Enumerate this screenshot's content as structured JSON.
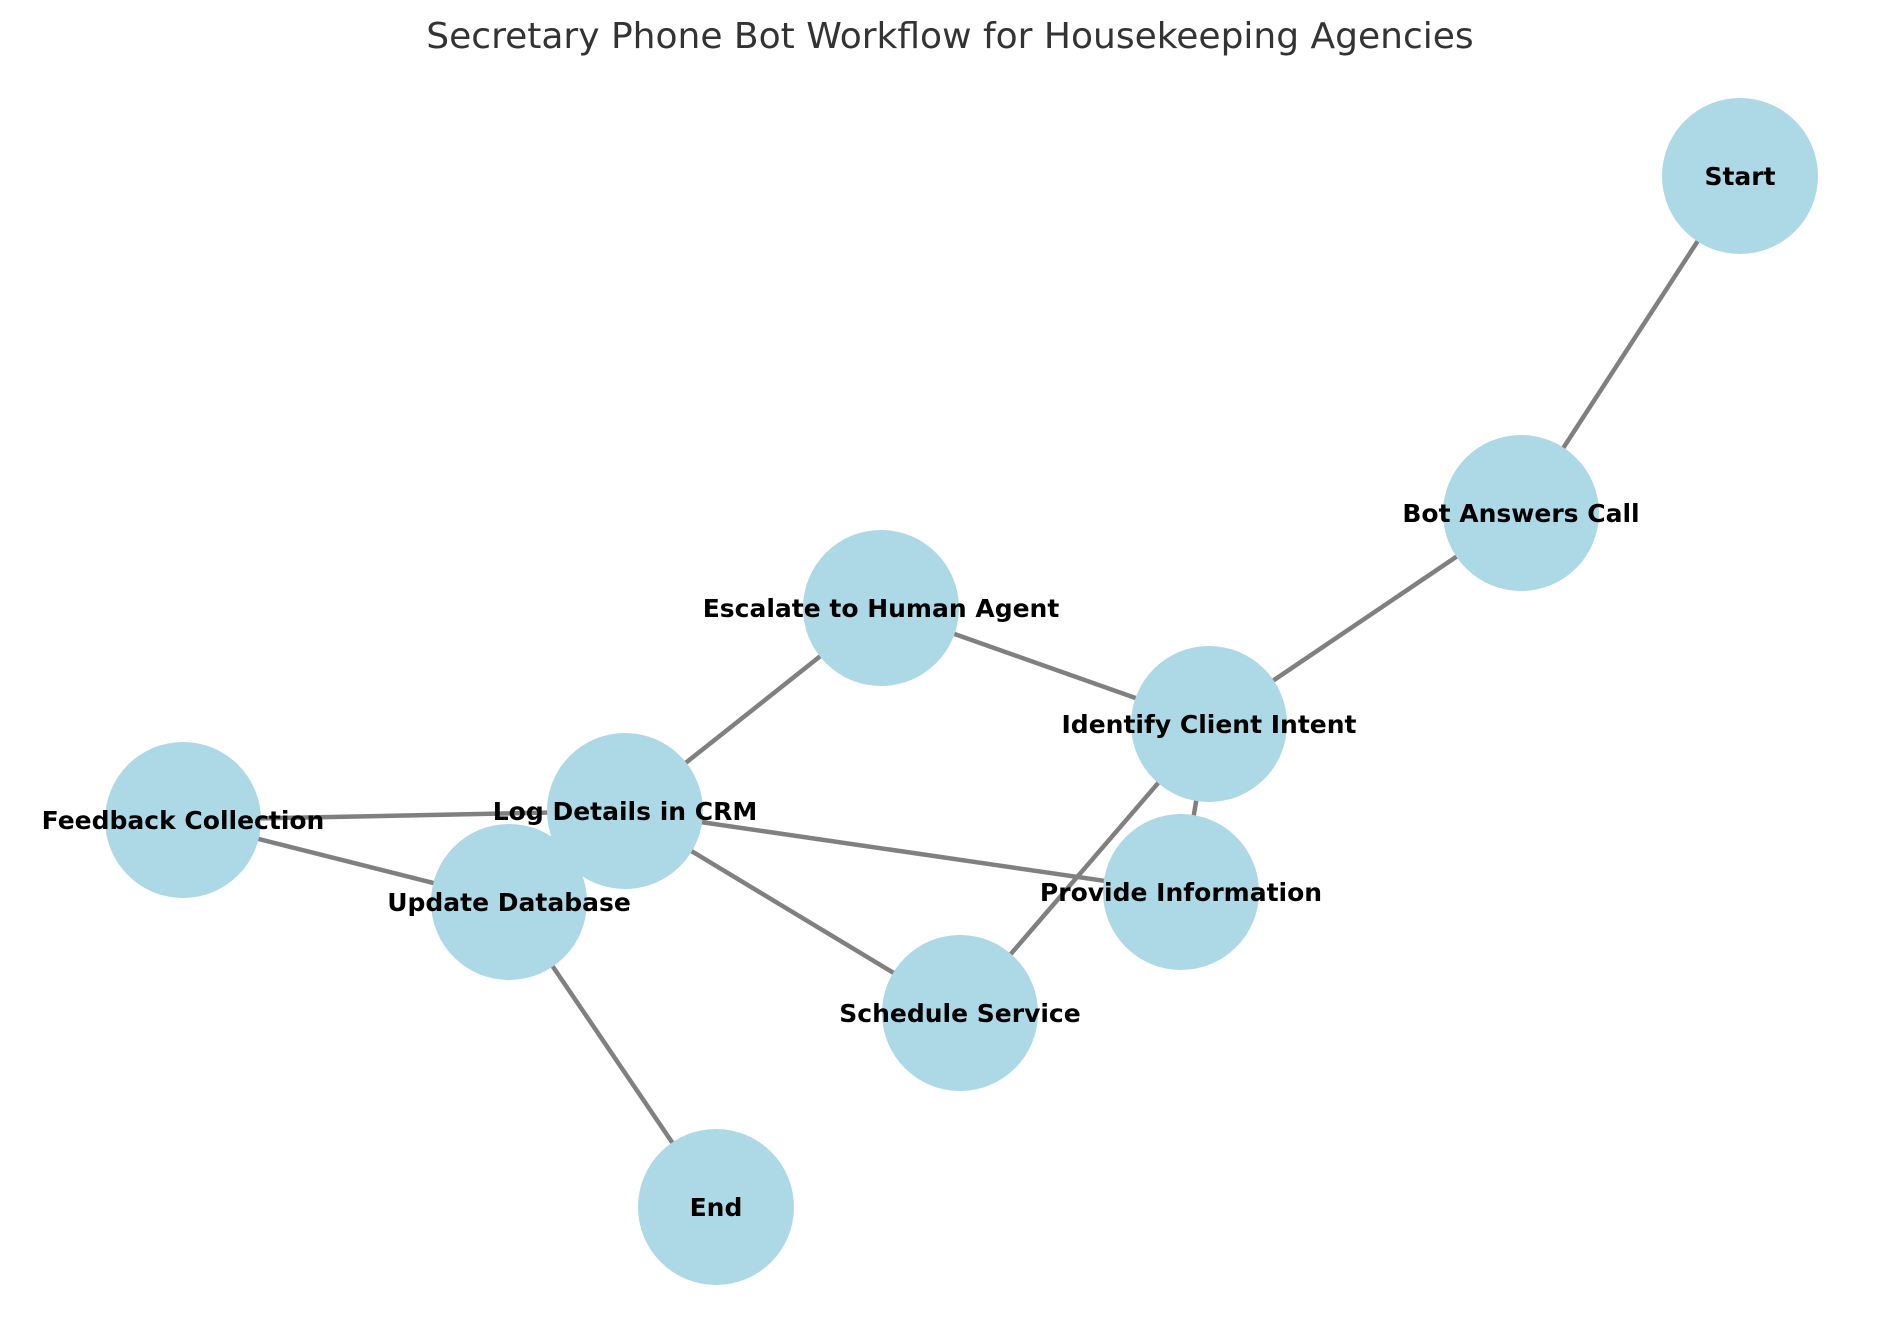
{
  "title": "Secretary Phone Bot Workflow for Housekeeping Agencies",
  "colors": {
    "node": "#ADD8E6",
    "edge": "#808080",
    "label": "#000000"
  },
  "nodes": [
    {
      "id": "start",
      "label": "Start"
    },
    {
      "id": "bot",
      "label": "Bot Answers Call"
    },
    {
      "id": "intent",
      "label": "Identify Client Intent"
    },
    {
      "id": "escalate",
      "label": "Escalate to Human Agent"
    },
    {
      "id": "provide",
      "label": "Provide Information"
    },
    {
      "id": "schedule",
      "label": "Schedule Service"
    },
    {
      "id": "log",
      "label": "Log Details in CRM"
    },
    {
      "id": "feedback",
      "label": "Feedback Collection"
    },
    {
      "id": "update",
      "label": "Update Database"
    },
    {
      "id": "end",
      "label": "End"
    }
  ],
  "edges": [
    [
      "start",
      "bot"
    ],
    [
      "bot",
      "intent"
    ],
    [
      "intent",
      "escalate"
    ],
    [
      "intent",
      "provide"
    ],
    [
      "intent",
      "schedule"
    ],
    [
      "escalate",
      "log"
    ],
    [
      "provide",
      "log"
    ],
    [
      "schedule",
      "log"
    ],
    [
      "log",
      "feedback"
    ],
    [
      "feedback",
      "update"
    ],
    [
      "update",
      "end"
    ]
  ]
}
